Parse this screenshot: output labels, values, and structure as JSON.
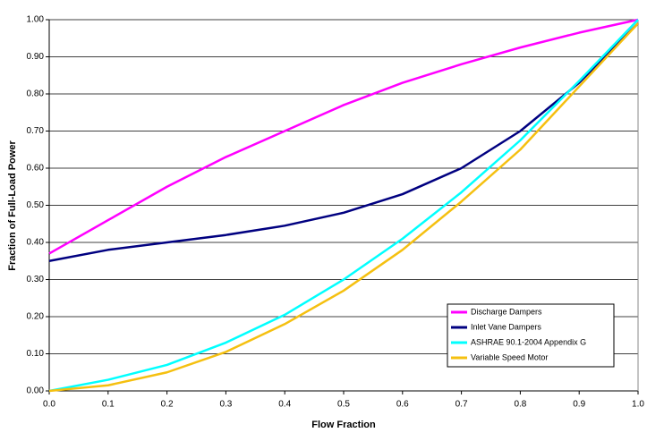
{
  "chart_data": {
    "type": "line",
    "xlabel": "Flow Fraction",
    "ylabel": "Fraction of Full-Load Power",
    "x": [
      0,
      0.1,
      0.2,
      0.3,
      0.4,
      0.5,
      0.6,
      0.7,
      0.8,
      0.9,
      1
    ],
    "series": [
      {
        "name": "Discharge Dampers",
        "color": "#ff00ff",
        "values": [
          0.37,
          0.46,
          0.55,
          0.63,
          0.7,
          0.77,
          0.83,
          0.88,
          0.925,
          0.965,
          1.0
        ]
      },
      {
        "name": "Inlet Vane Dampers",
        "color": "#000080",
        "values": [
          0.35,
          0.38,
          0.4,
          0.42,
          0.445,
          0.48,
          0.53,
          0.6,
          0.7,
          0.83,
          0.99
        ]
      },
      {
        "name": "ASHRAE 90.1-2004 Appendix G",
        "color": "#00ffff",
        "values": [
          0.0,
          0.03,
          0.07,
          0.13,
          0.205,
          0.3,
          0.41,
          0.535,
          0.675,
          0.835,
          1.0
        ]
      },
      {
        "name": "Variable Speed Motor",
        "color": "#f5c010",
        "values": [
          0.0,
          0.015,
          0.05,
          0.105,
          0.18,
          0.27,
          0.38,
          0.51,
          0.65,
          0.82,
          0.99
        ]
      }
    ],
    "xlim": [
      0,
      1
    ],
    "xticks": [
      {
        "value": 0,
        "label": "0.0"
      },
      0.1,
      0.2,
      0.3,
      0.4,
      0.5,
      0.6,
      0.7,
      0.8,
      0.9,
      {
        "value": 1,
        "label": "1.0"
      }
    ],
    "ylim": [
      0,
      1
    ],
    "yticks": [
      {
        "value": 0,
        "label": "0.00"
      },
      {
        "value": 0.1,
        "label": "0.10"
      },
      {
        "value": 0.2,
        "label": "0.20"
      },
      {
        "value": 0.3,
        "label": "0.30"
      },
      {
        "value": 0.4,
        "label": "0.40"
      },
      {
        "value": 0.5,
        "label": "0.50"
      },
      {
        "value": 0.6,
        "label": "0.60"
      },
      {
        "value": 0.7,
        "label": "0.70"
      },
      {
        "value": 0.8,
        "label": "0.80"
      },
      {
        "value": 0.9,
        "label": "0.90"
      },
      {
        "value": 1,
        "label": "1.00"
      }
    ],
    "grid": true,
    "legend": "lower right"
  }
}
